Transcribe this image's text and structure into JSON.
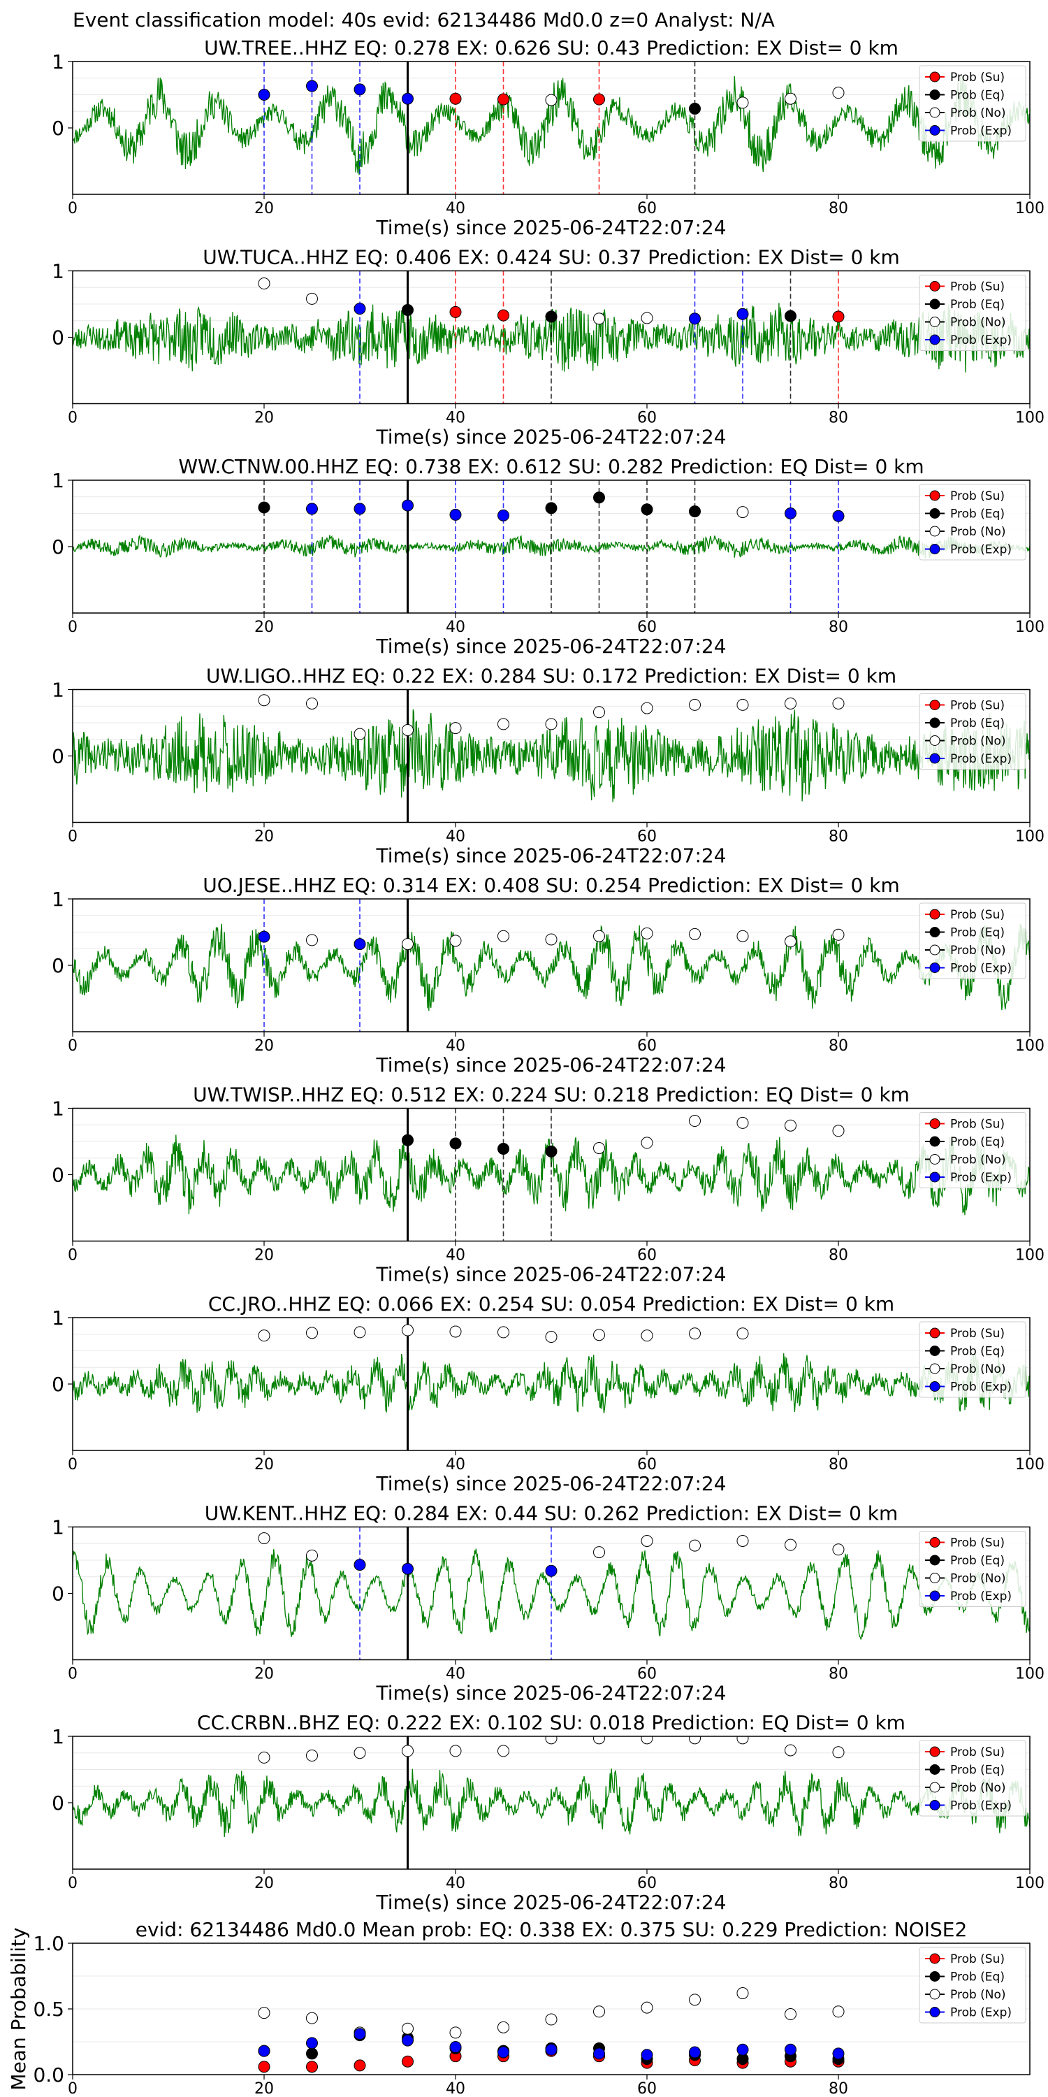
{
  "figure_title": "Event classification model: 40s evid: 62134486 Md0.0 z=0 Analyst: N/A",
  "legend_labels": [
    "Prob (Su)",
    "Prob (Eq)",
    "Prob (No)",
    "Prob (Exp)"
  ],
  "colors": {
    "waveform": "#008000",
    "su": "#ff0000",
    "eq": "#000000",
    "no": "#ffffff",
    "exp": "#0000ff",
    "origin": "#000000",
    "grid": "#e8e8e8"
  },
  "chart_data": [
    {
      "type": "line",
      "title": "UW.TREE..HHZ   EQ: 0.278  EX: 0.626  SU: 0.43   Prediction: EX    Dist= 0 km",
      "xlabel": "Time(s) since 2025-06-24T22:07:24",
      "ylabel": "",
      "xlim": [
        0,
        100
      ],
      "ylim": [
        -1,
        1
      ],
      "xticks": [
        0,
        20,
        40,
        60,
        80,
        100
      ],
      "yticks": [
        0,
        1
      ],
      "grid": true,
      "legend": "top-right",
      "wave": {
        "seed": 11,
        "amp": 0.45,
        "period": 6,
        "noise": 0.4,
        "offset": 0.05
      },
      "origin_time": 35,
      "points": [
        {
          "t": 20,
          "v": 0.5,
          "cls": "exp"
        },
        {
          "t": 25,
          "v": 0.63,
          "cls": "exp"
        },
        {
          "t": 30,
          "v": 0.58,
          "cls": "exp"
        },
        {
          "t": 35,
          "v": 0.44,
          "cls": "exp"
        },
        {
          "t": 40,
          "v": 0.44,
          "cls": "su"
        },
        {
          "t": 45,
          "v": 0.43,
          "cls": "su"
        },
        {
          "t": 50,
          "v": 0.42,
          "cls": "no"
        },
        {
          "t": 55,
          "v": 0.43,
          "cls": "su"
        },
        {
          "t": 65,
          "v": 0.29,
          "cls": "eq"
        },
        {
          "t": 70,
          "v": 0.38,
          "cls": "no"
        },
        {
          "t": 75,
          "v": 0.44,
          "cls": "no"
        },
        {
          "t": 80,
          "v": 0.53,
          "cls": "no"
        }
      ]
    },
    {
      "type": "line",
      "title": "UW.TUCA..HHZ   EQ: 0.406  EX: 0.424  SU: 0.37   Prediction: EX    Dist= 0 km",
      "xlabel": "Time(s) since 2025-06-24T22:07:24",
      "ylabel": "",
      "xlim": [
        0,
        100
      ],
      "ylim": [
        -1,
        1
      ],
      "xticks": [
        0,
        20,
        40,
        60,
        80,
        100
      ],
      "yticks": [
        0,
        1
      ],
      "grid": true,
      "legend": "top-right",
      "wave": {
        "seed": 23,
        "amp": 0.1,
        "period": 3,
        "noise": 0.55,
        "offset": 0.0
      },
      "origin_time": 35,
      "points": [
        {
          "t": 20,
          "v": 0.81,
          "cls": "no"
        },
        {
          "t": 25,
          "v": 0.58,
          "cls": "no"
        },
        {
          "t": 30,
          "v": 0.43,
          "cls": "exp"
        },
        {
          "t": 35,
          "v": 0.41,
          "cls": "eq"
        },
        {
          "t": 40,
          "v": 0.38,
          "cls": "su"
        },
        {
          "t": 45,
          "v": 0.33,
          "cls": "su"
        },
        {
          "t": 50,
          "v": 0.31,
          "cls": "eq"
        },
        {
          "t": 55,
          "v": 0.28,
          "cls": "no"
        },
        {
          "t": 60,
          "v": 0.29,
          "cls": "no"
        },
        {
          "t": 65,
          "v": 0.28,
          "cls": "exp"
        },
        {
          "t": 70,
          "v": 0.35,
          "cls": "exp"
        },
        {
          "t": 75,
          "v": 0.32,
          "cls": "eq"
        },
        {
          "t": 80,
          "v": 0.31,
          "cls": "su"
        }
      ]
    },
    {
      "type": "line",
      "title": "WW.CTNW.00.HHZ   EQ: 0.738  EX: 0.612  SU: 0.282   Prediction: EQ    Dist= 0 km",
      "xlabel": "Time(s) since 2025-06-24T22:07:24",
      "ylabel": "",
      "xlim": [
        0,
        100
      ],
      "ylim": [
        -1,
        1
      ],
      "xticks": [
        0,
        20,
        40,
        60,
        80,
        100
      ],
      "yticks": [
        0,
        1
      ],
      "grid": true,
      "legend": "top-right",
      "wave": {
        "seed": 37,
        "amp": 0.06,
        "period": 5,
        "noise": 0.15,
        "offset": 0.0
      },
      "origin_time": 35,
      "points": [
        {
          "t": 20,
          "v": 0.59,
          "cls": "eq"
        },
        {
          "t": 25,
          "v": 0.57,
          "cls": "exp"
        },
        {
          "t": 30,
          "v": 0.57,
          "cls": "exp"
        },
        {
          "t": 35,
          "v": 0.62,
          "cls": "exp"
        },
        {
          "t": 40,
          "v": 0.48,
          "cls": "exp"
        },
        {
          "t": 45,
          "v": 0.47,
          "cls": "exp"
        },
        {
          "t": 50,
          "v": 0.58,
          "cls": "eq"
        },
        {
          "t": 55,
          "v": 0.74,
          "cls": "eq"
        },
        {
          "t": 60,
          "v": 0.56,
          "cls": "eq"
        },
        {
          "t": 65,
          "v": 0.53,
          "cls": "eq"
        },
        {
          "t": 70,
          "v": 0.52,
          "cls": "no"
        },
        {
          "t": 75,
          "v": 0.5,
          "cls": "exp"
        },
        {
          "t": 80,
          "v": 0.46,
          "cls": "exp"
        }
      ]
    },
    {
      "type": "line",
      "title": "UW.LIGO..HHZ   EQ: 0.22  EX: 0.284  SU: 0.172   Prediction: EX    Dist= 0 km",
      "xlabel": "Time(s) since 2025-06-24T22:07:24",
      "ylabel": "",
      "xlim": [
        0,
        100
      ],
      "ylim": [
        -1,
        1
      ],
      "xticks": [
        0,
        20,
        40,
        60,
        80,
        100
      ],
      "yticks": [
        0,
        1
      ],
      "grid": true,
      "legend": "top-right",
      "wave": {
        "seed": 41,
        "amp": 0.12,
        "period": 2,
        "noise": 0.75,
        "offset": 0.0
      },
      "origin_time": 35,
      "points": [
        {
          "t": 20,
          "v": 0.84,
          "cls": "no"
        },
        {
          "t": 25,
          "v": 0.79,
          "cls": "no"
        },
        {
          "t": 30,
          "v": 0.33,
          "cls": "no"
        },
        {
          "t": 35,
          "v": 0.39,
          "cls": "no"
        },
        {
          "t": 40,
          "v": 0.42,
          "cls": "no"
        },
        {
          "t": 45,
          "v": 0.48,
          "cls": "no"
        },
        {
          "t": 50,
          "v": 0.48,
          "cls": "no"
        },
        {
          "t": 55,
          "v": 0.66,
          "cls": "no"
        },
        {
          "t": 60,
          "v": 0.72,
          "cls": "no"
        },
        {
          "t": 65,
          "v": 0.77,
          "cls": "no"
        },
        {
          "t": 70,
          "v": 0.77,
          "cls": "no"
        },
        {
          "t": 75,
          "v": 0.79,
          "cls": "no"
        },
        {
          "t": 80,
          "v": 0.79,
          "cls": "no"
        }
      ]
    },
    {
      "type": "line",
      "title": "UO.JESE..HHZ   EQ: 0.314  EX: 0.408  SU: 0.254   Prediction: EX    Dist= 0 km",
      "xlabel": "Time(s) since 2025-06-24T22:07:24",
      "ylabel": "",
      "xlim": [
        0,
        100
      ],
      "ylim": [
        -1,
        1
      ],
      "xticks": [
        0,
        20,
        40,
        60,
        80,
        100
      ],
      "yticks": [
        0,
        1
      ],
      "grid": true,
      "legend": "top-right",
      "wave": {
        "seed": 53,
        "amp": 0.42,
        "period": 4,
        "noise": 0.35,
        "offset": 0.0
      },
      "origin_time": 35,
      "points": [
        {
          "t": 20,
          "v": 0.43,
          "cls": "exp"
        },
        {
          "t": 25,
          "v": 0.38,
          "cls": "no"
        },
        {
          "t": 30,
          "v": 0.32,
          "cls": "exp"
        },
        {
          "t": 35,
          "v": 0.32,
          "cls": "no"
        },
        {
          "t": 40,
          "v": 0.37,
          "cls": "no"
        },
        {
          "t": 45,
          "v": 0.44,
          "cls": "no"
        },
        {
          "t": 50,
          "v": 0.39,
          "cls": "no"
        },
        {
          "t": 55,
          "v": 0.44,
          "cls": "no"
        },
        {
          "t": 60,
          "v": 0.48,
          "cls": "no"
        },
        {
          "t": 65,
          "v": 0.47,
          "cls": "no"
        },
        {
          "t": 70,
          "v": 0.44,
          "cls": "no"
        },
        {
          "t": 75,
          "v": 0.36,
          "cls": "no"
        },
        {
          "t": 80,
          "v": 0.46,
          "cls": "no"
        }
      ]
    },
    {
      "type": "line",
      "title": "UW.TWISP..HHZ   EQ: 0.512  EX: 0.224  SU: 0.218   Prediction: EQ    Dist= 0 km",
      "xlabel": "Time(s) since 2025-06-24T22:07:24",
      "ylabel": "",
      "xlim": [
        0,
        100
      ],
      "ylim": [
        -1,
        1
      ],
      "xticks": [
        0,
        20,
        40,
        60,
        80,
        100
      ],
      "yticks": [
        0,
        1
      ],
      "grid": true,
      "legend": "top-right",
      "wave": {
        "seed": 67,
        "amp": 0.3,
        "period": 3,
        "noise": 0.4,
        "offset": 0.0
      },
      "origin_time": 35,
      "points": [
        {
          "t": 35,
          "v": 0.52,
          "cls": "eq"
        },
        {
          "t": 40,
          "v": 0.47,
          "cls": "eq"
        },
        {
          "t": 45,
          "v": 0.39,
          "cls": "eq"
        },
        {
          "t": 50,
          "v": 0.35,
          "cls": "eq"
        },
        {
          "t": 55,
          "v": 0.4,
          "cls": "no"
        },
        {
          "t": 60,
          "v": 0.48,
          "cls": "no"
        },
        {
          "t": 65,
          "v": 0.81,
          "cls": "no"
        },
        {
          "t": 70,
          "v": 0.78,
          "cls": "no"
        },
        {
          "t": 75,
          "v": 0.74,
          "cls": "no"
        },
        {
          "t": 80,
          "v": 0.66,
          "cls": "no"
        }
      ]
    },
    {
      "type": "line",
      "title": "CC.JRO..HHZ   EQ: 0.066  EX: 0.254  SU: 0.054   Prediction: EX    Dist= 0 km",
      "xlabel": "Time(s) since 2025-06-24T22:07:24",
      "ylabel": "",
      "xlim": [
        0,
        100
      ],
      "ylim": [
        -1,
        1
      ],
      "xticks": [
        0,
        20,
        40,
        60,
        80,
        100
      ],
      "yticks": [
        0,
        1
      ],
      "grid": true,
      "legend": "top-right",
      "wave": {
        "seed": 79,
        "amp": 0.2,
        "period": 2.5,
        "noise": 0.35,
        "offset": 0.0
      },
      "origin_time": 35,
      "points": [
        {
          "t": 20,
          "v": 0.73,
          "cls": "no"
        },
        {
          "t": 25,
          "v": 0.77,
          "cls": "no"
        },
        {
          "t": 30,
          "v": 0.78,
          "cls": "no"
        },
        {
          "t": 35,
          "v": 0.81,
          "cls": "no"
        },
        {
          "t": 40,
          "v": 0.79,
          "cls": "no"
        },
        {
          "t": 45,
          "v": 0.78,
          "cls": "no"
        },
        {
          "t": 50,
          "v": 0.71,
          "cls": "no"
        },
        {
          "t": 55,
          "v": 0.74,
          "cls": "no"
        },
        {
          "t": 60,
          "v": 0.73,
          "cls": "no"
        },
        {
          "t": 65,
          "v": 0.76,
          "cls": "no"
        },
        {
          "t": 70,
          "v": 0.76,
          "cls": "no"
        }
      ]
    },
    {
      "type": "line",
      "title": "UW.KENT..HHZ   EQ: 0.284  EX: 0.44  SU: 0.262   Prediction: EX    Dist= 0 km",
      "xlabel": "Time(s) since 2025-06-24T22:07:24",
      "ylabel": "",
      "xlim": [
        0,
        100
      ],
      "ylim": [
        -1,
        1
      ],
      "xticks": [
        0,
        20,
        40,
        60,
        80,
        100
      ],
      "yticks": [
        0,
        1
      ],
      "grid": true,
      "legend": "top-right",
      "wave": {
        "seed": 83,
        "amp": 0.55,
        "period": 3.5,
        "noise": 0.2,
        "offset": 0.0
      },
      "origin_time": 35,
      "points": [
        {
          "t": 20,
          "v": 0.83,
          "cls": "no"
        },
        {
          "t": 25,
          "v": 0.57,
          "cls": "no"
        },
        {
          "t": 30,
          "v": 0.43,
          "cls": "exp"
        },
        {
          "t": 35,
          "v": 0.37,
          "cls": "exp"
        },
        {
          "t": 50,
          "v": 0.34,
          "cls": "exp"
        },
        {
          "t": 55,
          "v": 0.62,
          "cls": "no"
        },
        {
          "t": 60,
          "v": 0.79,
          "cls": "no"
        },
        {
          "t": 65,
          "v": 0.72,
          "cls": "no"
        },
        {
          "t": 70,
          "v": 0.79,
          "cls": "no"
        },
        {
          "t": 75,
          "v": 0.73,
          "cls": "no"
        },
        {
          "t": 80,
          "v": 0.66,
          "cls": "no"
        }
      ]
    },
    {
      "type": "line",
      "title": "CC.CRBN..BHZ   EQ: 0.222  EX: 0.102  SU: 0.018   Prediction: EQ    Dist= 0 km",
      "xlabel": "Time(s) since 2025-06-24T22:07:24",
      "ylabel": "",
      "xlim": [
        0,
        100
      ],
      "ylim": [
        -1,
        1
      ],
      "xticks": [
        0,
        20,
        40,
        60,
        80,
        100
      ],
      "yticks": [
        0,
        1
      ],
      "grid": true,
      "legend": "top-right",
      "wave": {
        "seed": 97,
        "amp": 0.3,
        "period": 3,
        "noise": 0.3,
        "offset": 0.0
      },
      "origin_time": 35,
      "points": [
        {
          "t": 20,
          "v": 0.68,
          "cls": "no"
        },
        {
          "t": 25,
          "v": 0.71,
          "cls": "no"
        },
        {
          "t": 30,
          "v": 0.75,
          "cls": "no"
        },
        {
          "t": 35,
          "v": 0.78,
          "cls": "no"
        },
        {
          "t": 40,
          "v": 0.78,
          "cls": "no"
        },
        {
          "t": 45,
          "v": 0.78,
          "cls": "no"
        },
        {
          "t": 50,
          "v": 0.97,
          "cls": "no"
        },
        {
          "t": 55,
          "v": 0.97,
          "cls": "no"
        },
        {
          "t": 60,
          "v": 0.97,
          "cls": "no"
        },
        {
          "t": 65,
          "v": 0.97,
          "cls": "no"
        },
        {
          "t": 70,
          "v": 0.97,
          "cls": "no"
        },
        {
          "t": 75,
          "v": 0.79,
          "cls": "no"
        },
        {
          "t": 80,
          "v": 0.76,
          "cls": "no"
        }
      ]
    },
    {
      "type": "scatter",
      "title": "evid: 62134486  Md0.0   Mean prob:    EQ: 0.338  EX: 0.375  SU: 0.229   Prediction: NOISE2",
      "xlabel": "",
      "ylabel": "Mean Probability",
      "xlim": [
        0,
        100
      ],
      "ylim": [
        0,
        1
      ],
      "xticks": [
        0,
        20,
        40,
        60,
        80
      ],
      "yticks": [
        0.0,
        0.5,
        1.0
      ],
      "grid": true,
      "legend": "top-right",
      "x": [
        20,
        25,
        30,
        35,
        40,
        45,
        50,
        55,
        60,
        65,
        70,
        75,
        80
      ],
      "series": [
        {
          "name": "Prob (Su)",
          "cls": "su",
          "values": [
            0.06,
            0.06,
            0.07,
            0.1,
            0.14,
            0.14,
            0.18,
            0.14,
            0.09,
            0.11,
            0.09,
            0.1,
            0.1
          ]
        },
        {
          "name": "Prob (Eq)",
          "cls": "eq",
          "values": [
            0.18,
            0.16,
            0.3,
            0.28,
            0.2,
            0.18,
            0.2,
            0.2,
            0.12,
            0.15,
            0.12,
            0.14,
            0.12
          ]
        },
        {
          "name": "Prob (No)",
          "cls": "no",
          "values": [
            0.47,
            0.43,
            0.32,
            0.35,
            0.32,
            0.36,
            0.42,
            0.48,
            0.51,
            0.57,
            0.62,
            0.46,
            0.48
          ]
        },
        {
          "name": "Prob (Exp)",
          "cls": "exp",
          "values": [
            0.18,
            0.24,
            0.31,
            0.26,
            0.21,
            0.17,
            0.19,
            0.16,
            0.15,
            0.17,
            0.19,
            0.19,
            0.16
          ]
        }
      ]
    }
  ]
}
